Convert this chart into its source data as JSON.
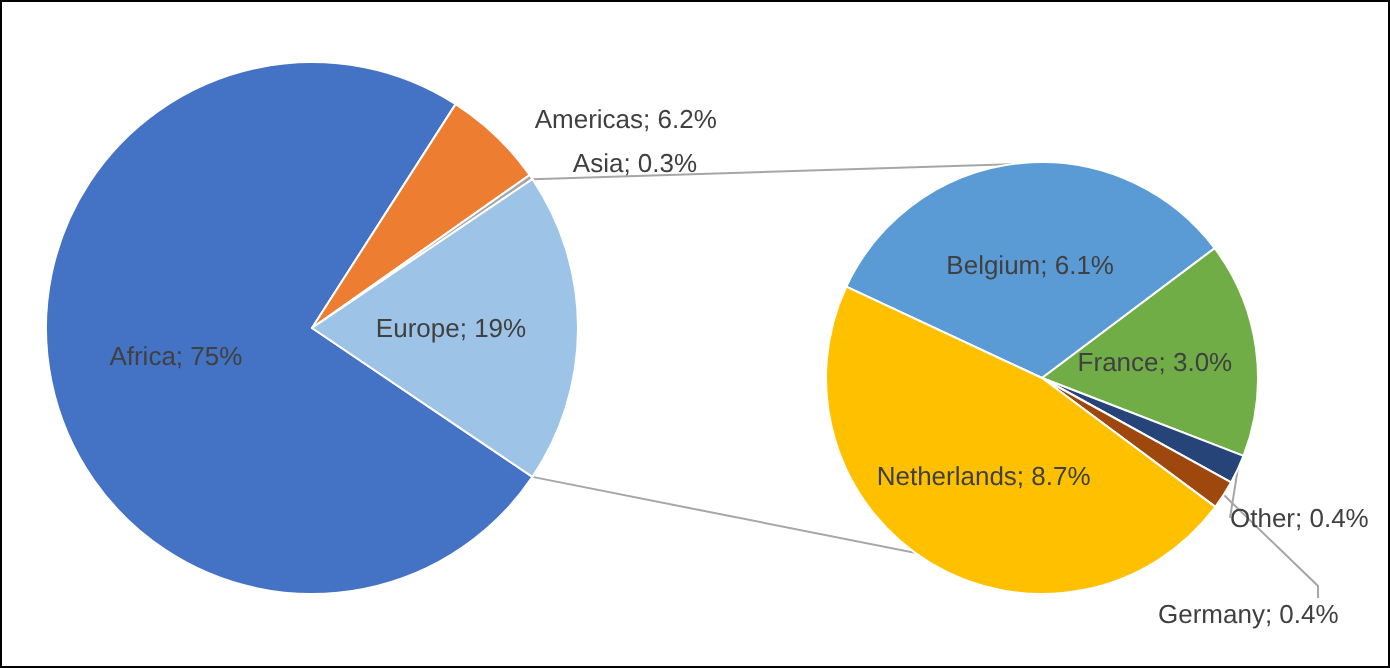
{
  "chart_data": [
    {
      "type": "pie",
      "categories": [
        "Africa",
        "Americas",
        "Asia",
        "Europe"
      ],
      "values": [
        75,
        6.2,
        0.3,
        19
      ],
      "value_labels": [
        "75%",
        "6.2%",
        "0.3%",
        "19%"
      ],
      "colors": [
        "#4472c4",
        "#ed7d31",
        "#a5a5a5",
        "#9dc3e6"
      ]
    },
    {
      "type": "pie",
      "categories": [
        "Belgium",
        "France",
        "Other",
        "Germany",
        "Netherlands"
      ],
      "values": [
        6.1,
        3.0,
        0.4,
        0.4,
        8.7
      ],
      "value_labels": [
        "6.1%",
        "3.0%",
        "0.4%",
        "0.4%",
        "8.7%"
      ],
      "colors": [
        "#5b9bd5",
        "#70ad47",
        "#264478",
        "#9e480e",
        "#ffc000"
      ]
    }
  ]
}
